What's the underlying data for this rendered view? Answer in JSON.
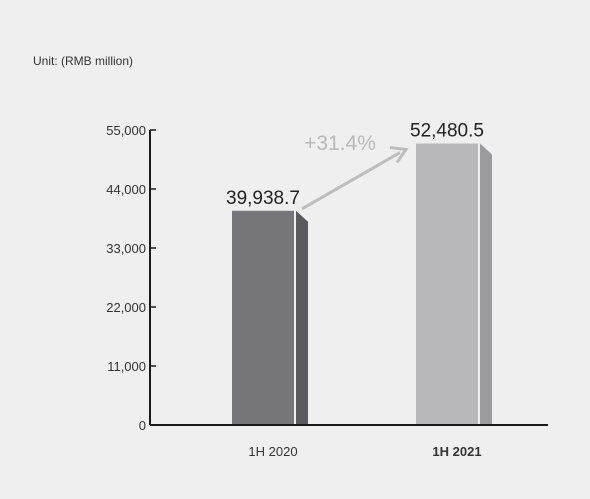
{
  "unit_label": "Unit: (RMB million)",
  "growth_label": "+31.4%",
  "chart_data": {
    "type": "bar",
    "categories": [
      "1H 2020",
      "1H 2021"
    ],
    "values": [
      39938.7,
      52480.5
    ],
    "value_labels": [
      "39,938.7",
      "52,480.5"
    ],
    "ylim": [
      0,
      55000
    ],
    "yticks": [
      0,
      11000,
      22000,
      33000,
      44000,
      55000
    ],
    "ytick_labels": [
      "0",
      "11,000",
      "22,000",
      "33,000",
      "44,000",
      "55,000"
    ],
    "bold_categories": [
      false,
      true
    ],
    "bar_colors": [
      "#76767a",
      "#b8b8ba"
    ],
    "bar_side_colors": [
      "#5b5b5f",
      "#9b9b9e"
    ],
    "axis_color": "#1a1a1a",
    "arrow_color": "#bdbdbd",
    "grid": false
  }
}
